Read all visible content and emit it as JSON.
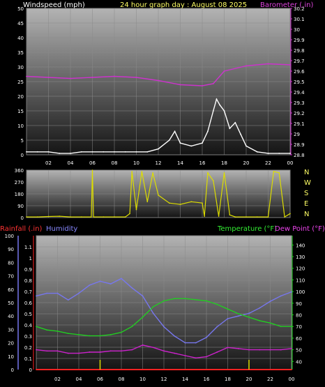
{
  "header": {
    "left_label": "Windspeed (mph)",
    "center_label": "24 hour graph day : August 08 2025",
    "right_label": "Barometer (.in)"
  },
  "compass": [
    "N",
    "W",
    "S",
    "E",
    "N"
  ],
  "lower_header": {
    "rainfall": "Rainfall (.in)",
    "humidity": "Humidity",
    "temperature": "Temperature (°F)",
    "dewpoint": "Dew Point (°F)"
  },
  "colors": {
    "wind": "#ffffff",
    "wind_avg": "#00dd00",
    "barometer": "#cc33cc",
    "direction": "#dddd00",
    "humidity": "#7777ee",
    "temperature": "#22cc22",
    "dewpoint": "#cc22cc",
    "rain": "#ff2222",
    "rain_ticks": "#dddd00"
  },
  "chart_data": [
    {
      "type": "line",
      "panel": "wind",
      "x_ticks": [
        "02",
        "04",
        "06",
        "08",
        "10",
        "12",
        "14",
        "16",
        "18",
        "20",
        "22",
        "00"
      ],
      "y_left": {
        "label": "Windspeed (mph)",
        "ticks": [
          0,
          5,
          10,
          15,
          20,
          25,
          30,
          35,
          40,
          45,
          50
        ],
        "lim": [
          0,
          50
        ]
      },
      "y_right": {
        "label": "Barometer (.in)",
        "ticks": [
          "28.8",
          "28.9",
          "29",
          "29.1",
          "29.2",
          "29.3",
          "29.4",
          "29.5",
          "29.6",
          "29.7",
          "29.8",
          "29.9",
          "30",
          "30.1",
          "30.2"
        ],
        "lim": [
          28.8,
          30.2
        ]
      },
      "series": [
        {
          "name": "Windspeed (mph)",
          "axis": "left",
          "x": [
            0,
            1,
            2,
            3,
            4,
            5,
            6,
            7,
            8,
            9,
            10,
            11,
            12,
            13,
            13.5,
            14,
            15,
            16,
            16.5,
            17,
            17.3,
            17.6,
            18,
            18.5,
            19,
            19.5,
            20,
            21,
            22,
            23,
            24
          ],
          "values": [
            1,
            1,
            1,
            0.5,
            0.5,
            1,
            1,
            1,
            1,
            1,
            1,
            1,
            2,
            5,
            8,
            4,
            3,
            4,
            8,
            15,
            19,
            17,
            15,
            9,
            11,
            7,
            3,
            1,
            0.5,
            0.5,
            0.5
          ]
        },
        {
          "name": "Barometer (.in)",
          "axis": "right",
          "x": [
            0,
            2,
            4,
            6,
            8,
            10,
            12,
            14,
            16,
            17,
            18,
            20,
            22,
            24
          ],
          "values": [
            29.55,
            29.54,
            29.53,
            29.54,
            29.55,
            29.54,
            29.51,
            29.47,
            29.46,
            29.48,
            29.6,
            29.65,
            29.67,
            29.66
          ]
        }
      ]
    },
    {
      "type": "line",
      "panel": "direction",
      "y_left": {
        "ticks": [
          0,
          90,
          180,
          270,
          360
        ],
        "lim": [
          0,
          360
        ]
      },
      "series": [
        {
          "name": "Wind direction",
          "x": [
            0,
            1,
            2,
            3,
            4,
            5,
            5.9,
            6,
            6.1,
            7,
            8,
            9,
            9.4,
            9.6,
            10,
            10.5,
            11,
            11.5,
            12,
            13,
            14,
            15,
            16,
            16.2,
            16.5,
            17,
            17.5,
            18,
            18.5,
            19,
            20,
            21,
            22,
            22.5,
            23,
            23.5,
            24
          ],
          "values": [
            5,
            5,
            8,
            10,
            5,
            5,
            5,
            360,
            5,
            5,
            5,
            5,
            30,
            350,
            60,
            350,
            120,
            340,
            170,
            110,
            100,
            120,
            110,
            10,
            340,
            280,
            10,
            340,
            20,
            5,
            5,
            5,
            5,
            350,
            340,
            5,
            30
          ]
        }
      ]
    },
    {
      "type": "line",
      "panel": "thermo",
      "x_ticks": [
        "02",
        "04",
        "06",
        "08",
        "10",
        "12",
        "14",
        "16",
        "18",
        "20",
        "22",
        "00"
      ],
      "y_left_humidity": {
        "label": "Humidity",
        "ticks": [
          0,
          10,
          20,
          30,
          40,
          50,
          60,
          70,
          80,
          90,
          100
        ],
        "lim": [
          0,
          100
        ]
      },
      "y_left_rain": {
        "label": "Rainfall (.in)",
        "ticks": [
          "0",
          "0.1",
          "0.2",
          "0.3",
          "0.4",
          "0.5",
          "0.6",
          "0.7",
          "0.8",
          "0.9",
          "1",
          "1.1"
        ],
        "lim": [
          0,
          1.2
        ]
      },
      "y_right": {
        "label": "Temperature (°F)",
        "ticks": [
          40,
          50,
          60,
          70,
          80,
          90,
          100,
          110,
          120,
          130,
          140
        ],
        "lim": [
          33,
          148
        ]
      },
      "series": [
        {
          "name": "Humidity",
          "axis": "humidity",
          "x": [
            0,
            1,
            2,
            3,
            4,
            5,
            6,
            7,
            8,
            9,
            10,
            11,
            12,
            13,
            14,
            15,
            16,
            17,
            18,
            19,
            20,
            21,
            22,
            23,
            24
          ],
          "values": [
            55,
            57,
            57,
            52,
            57,
            63,
            66,
            64,
            68,
            61,
            55,
            42,
            32,
            25,
            20,
            20,
            24,
            32,
            38,
            40,
            42,
            46,
            51,
            55,
            58
          ]
        },
        {
          "name": "Temperature (°F)",
          "axis": "right",
          "x": [
            0,
            1,
            2,
            3,
            4,
            5,
            6,
            7,
            8,
            9,
            10,
            11,
            12,
            13,
            14,
            15,
            16,
            17,
            18,
            19,
            20,
            21,
            22,
            23,
            24
          ],
          "values": [
            70,
            67,
            66,
            64,
            63,
            62,
            62,
            63,
            65,
            70,
            78,
            87,
            92,
            94,
            94,
            93,
            92,
            89,
            85,
            81,
            78,
            75,
            73,
            70,
            70
          ]
        },
        {
          "name": "Dew Point (°F)",
          "axis": "right",
          "x": [
            0,
            1,
            2,
            3,
            4,
            5,
            6,
            7,
            8,
            9,
            10,
            11,
            12,
            13,
            14,
            15,
            16,
            17,
            18,
            19,
            20,
            21,
            22,
            23,
            24
          ],
          "values": [
            50,
            49,
            49,
            47,
            47,
            48,
            48,
            49,
            49,
            50,
            54,
            52,
            49,
            47,
            45,
            43,
            44,
            48,
            52,
            51,
            50,
            50,
            50,
            50,
            51
          ]
        },
        {
          "name": "Rainfall (.in)",
          "axis": "rain",
          "x": [
            0,
            24
          ],
          "values": [
            0,
            0
          ]
        }
      ],
      "rain_marks_x": [
        6,
        20
      ]
    }
  ]
}
